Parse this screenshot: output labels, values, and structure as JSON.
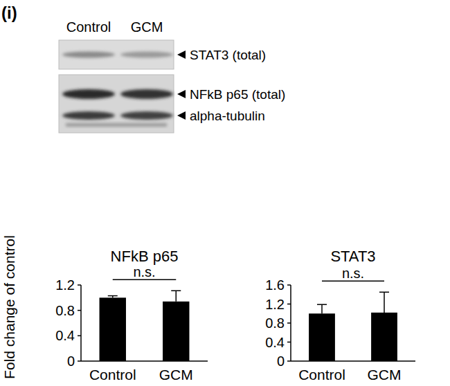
{
  "panel_label": "(i)",
  "blot": {
    "lanes": [
      "Control",
      "GCM"
    ],
    "bands": [
      "STAT3 (total)",
      "NFkB p65 (total)",
      "alpha-tubulin"
    ]
  },
  "chart_data": [
    {
      "type": "bar",
      "title": "NFkB p65",
      "ylabel": "Fold change of control",
      "categories": [
        "Control",
        "GCM"
      ],
      "values": [
        1.0,
        0.94
      ],
      "errors": [
        0.03,
        0.17
      ],
      "color": "#000000",
      "ylim": [
        0,
        1.2
      ],
      "yticks": [
        0,
        0.4,
        0.8,
        1.2
      ],
      "annotation": "n.s."
    },
    {
      "type": "bar",
      "title": "STAT3",
      "categories": [
        "Control",
        "GCM"
      ],
      "values": [
        1.0,
        1.02
      ],
      "errors": [
        0.19,
        0.43
      ],
      "color": "#000000",
      "ylim": [
        0,
        1.6
      ],
      "yticks": [
        0,
        0.4,
        0.8,
        1.2,
        1.6
      ],
      "annotation": "n.s."
    }
  ]
}
